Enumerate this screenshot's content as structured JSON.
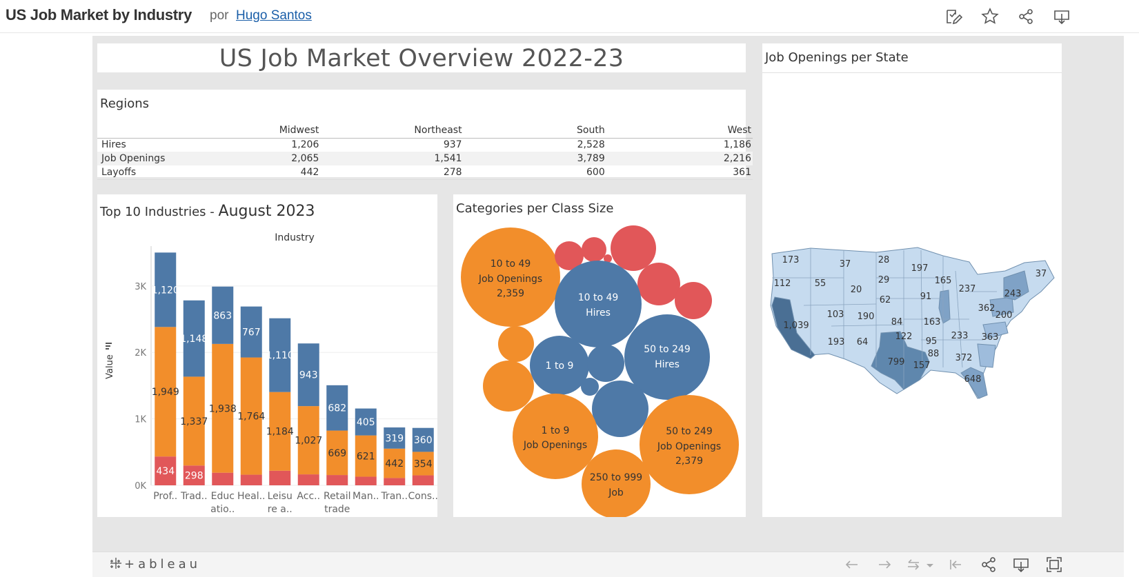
{
  "header": {
    "title": "US Job Market by Industry",
    "by": "por",
    "author": "Hugo Santos",
    "icons": [
      "edit-icon",
      "favorite-star-icon",
      "share-icon",
      "download-icon"
    ]
  },
  "dashboard": {
    "title": "US Job Market Overview 2022-23",
    "regions": {
      "title": "Regions",
      "columns": [
        "Midwest",
        "Northeast",
        "South",
        "West"
      ],
      "rows": [
        {
          "label": "Hires",
          "values": [
            "1,206",
            "937",
            "2,528",
            "1,186"
          ]
        },
        {
          "label": "Job Openings",
          "values": [
            "2,065",
            "1,541",
            "3,789",
            "2,216"
          ]
        },
        {
          "label": "Layoffs",
          "values": [
            "442",
            "278",
            "600",
            "361"
          ]
        }
      ]
    },
    "industries": {
      "title_prefix": "Top 10 Industries - ",
      "title_month": "August 2023",
      "header": "Industry",
      "ylabel": "Value",
      "yticks": [
        "0K",
        "1K",
        "2K",
        "3K"
      ]
    },
    "bubbles": {
      "title": "Categories per Class Size",
      "labels": [
        {
          "lines": [
            "10 to 49",
            "Job Openings",
            "2,359"
          ]
        },
        {
          "lines": [
            "10 to 49",
            "Hires"
          ]
        },
        {
          "lines": [
            "50 to 249",
            "Hires"
          ]
        },
        {
          "lines": [
            "1 to 9"
          ]
        },
        {
          "lines": [
            "1 to 9",
            "Job Openings"
          ]
        },
        {
          "lines": [
            "50 to 249",
            "Job Openings",
            "2,379"
          ]
        },
        {
          "lines": [
            "250 to 999",
            "Job"
          ]
        }
      ]
    },
    "map": {
      "title": "Job Openings per State",
      "state_labels": [
        "173",
        "37",
        "28",
        "197",
        "112",
        "55",
        "29",
        "165",
        "37",
        "20",
        "62",
        "91",
        "237",
        "243",
        "362",
        "200",
        "103",
        "190",
        "84",
        "163",
        "1,039",
        "122",
        "95",
        "233",
        "363",
        "193",
        "64",
        "88",
        "372",
        "799",
        "157",
        "648"
      ]
    }
  },
  "colors": {
    "hires": "#4e79a7",
    "job_openings": "#f28e2b",
    "layoffs": "#e15759",
    "map_light": "#c6dbef",
    "map_dark": "#4a6f94",
    "background": "#e6e6e6"
  },
  "footer": {
    "brand": "+ableau",
    "icons": [
      "undo-icon",
      "redo-icon",
      "revert-icon",
      "revert-dropdown-icon",
      "reset-icon",
      "share-icon",
      "download-icon",
      "fullscreen-icon"
    ]
  },
  "chart_data": {
    "type": "bar",
    "stacked": true,
    "title": "Top 10 Industries - August 2023",
    "xlabel": "Industry",
    "ylabel": "Value",
    "ylim": [
      0,
      3600
    ],
    "yticks": [
      "0K",
      "1K",
      "2K",
      "3K"
    ],
    "categories": [
      "Prof..",
      "Trad..",
      "Educ\natio..",
      "Heal..",
      "Leisu\nre a..",
      "Acc..",
      "Retail\ntrade",
      "Man..",
      "Tran..",
      "Cons.."
    ],
    "series": [
      {
        "name": "Layoffs",
        "color": "#e15759",
        "values": [
          434,
          298,
          190,
          160,
          220,
          165,
          155,
          130,
          110,
          150
        ],
        "labels": [
          "434",
          "298",
          "",
          "",
          "",
          "",
          "",
          "",
          "",
          ""
        ]
      },
      {
        "name": "Job Openings",
        "color": "#f28e2b",
        "values": [
          1949,
          1337,
          1938,
          1764,
          1184,
          1027,
          669,
          621,
          442,
          354
        ],
        "labels": [
          "1,949",
          "1,337",
          "1,938",
          "1,764",
          "1,184",
          "1,027",
          "669",
          "621",
          "442",
          "354"
        ]
      },
      {
        "name": "Hires",
        "color": "#4e79a7",
        "values": [
          1120,
          1148,
          863,
          767,
          1110,
          943,
          682,
          405,
          319,
          360
        ],
        "labels": [
          "1,120",
          "1,148",
          "863",
          "767",
          "1,110",
          "943",
          "682",
          "405",
          "319",
          "360"
        ]
      }
    ]
  }
}
